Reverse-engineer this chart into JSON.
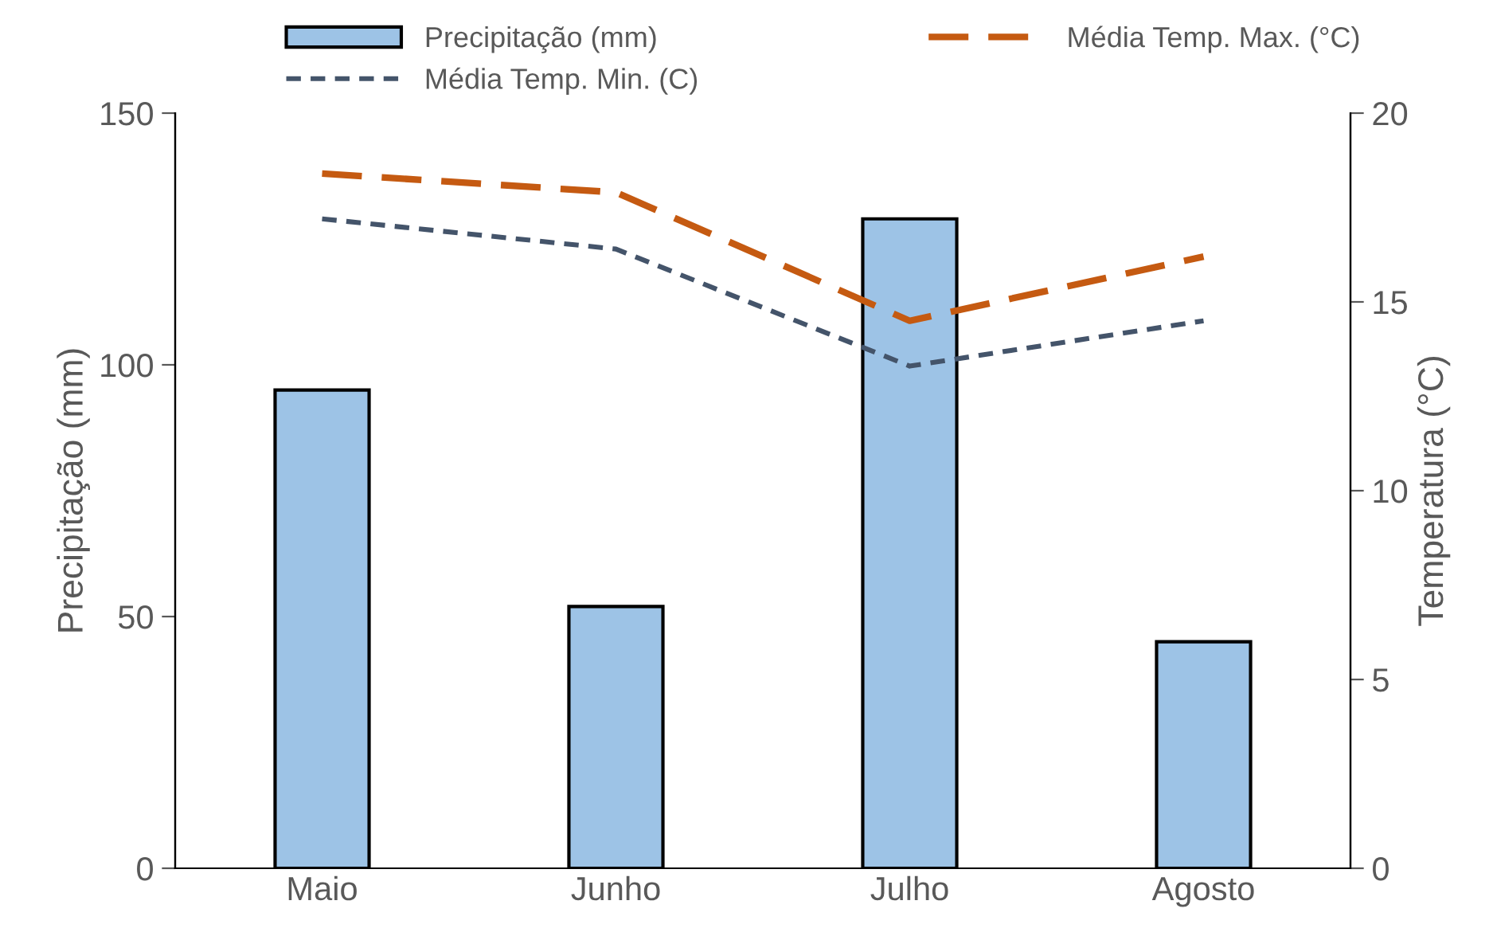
{
  "chart_data": {
    "type": "bar",
    "categories": [
      "Maio",
      "Junho",
      "Julho",
      "Agosto"
    ],
    "ylabel": "Precipitação (mm)",
    "y2label": "Temperatura (°C)",
    "series": [
      {
        "name": "Precipitação (mm)",
        "color": "#9dc3e6",
        "values": [
          95,
          52,
          129,
          45
        ]
      },
      {
        "name": "Média Temp. Max. (°C)",
        "type": "line",
        "axis": "y2",
        "color": "#c55a11",
        "line_style": "dashed",
        "values": [
          18.4,
          17.9,
          14.5,
          16.2
        ]
      },
      {
        "name": "Média Temp. Min. (C)",
        "type": "line",
        "axis": "y2",
        "color": "#44546a",
        "line_style": "dotted",
        "values": [
          17.2,
          16.4,
          13.3,
          14.5
        ]
      }
    ],
    "ylim": [
      0,
      150
    ],
    "yticks": [
      0,
      50,
      100,
      150
    ],
    "y2lim": [
      0,
      20
    ],
    "y2ticks": [
      0,
      5,
      10,
      15,
      20
    ],
    "grid": false,
    "legend": "top"
  }
}
